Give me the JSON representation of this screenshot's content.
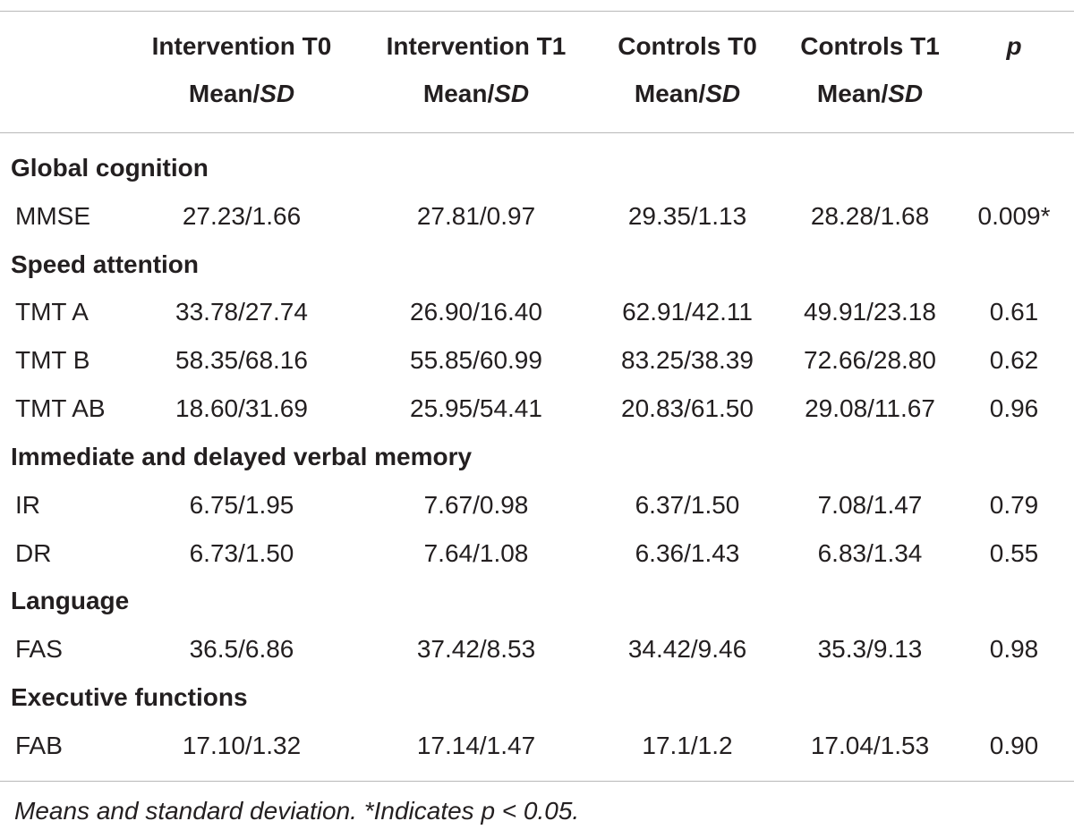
{
  "header": {
    "columns": [
      {
        "title": "Intervention T0",
        "sub": "Mean/",
        "sub_italic": "SD"
      },
      {
        "title": "Intervention T1",
        "sub": "Mean/",
        "sub_italic": "SD"
      },
      {
        "title": "Controls T0",
        "sub": "Mean/",
        "sub_italic": "SD"
      },
      {
        "title": "Controls T1",
        "sub": "Mean/",
        "sub_italic": "SD"
      },
      {
        "title": "p"
      }
    ]
  },
  "sections": [
    {
      "title": "Global cognition",
      "rows": [
        {
          "label": "MMSE",
          "cells": [
            "27.23/1.66",
            "27.81/0.97",
            "29.35/1.13",
            "28.28/1.68",
            "0.009*"
          ]
        }
      ]
    },
    {
      "title": "Speed attention",
      "rows": [
        {
          "label": "TMT A",
          "cells": [
            "33.78/27.74",
            "26.90/16.40",
            "62.91/42.11",
            "49.91/23.18",
            "0.61"
          ]
        },
        {
          "label": "TMT B",
          "cells": [
            "58.35/68.16",
            "55.85/60.99",
            "83.25/38.39",
            "72.66/28.80",
            "0.62"
          ]
        },
        {
          "label": "TMT AB",
          "cells": [
            "18.60/31.69",
            "25.95/54.41",
            "20.83/61.50",
            "29.08/11.67",
            "0.96"
          ]
        }
      ]
    },
    {
      "title": "Immediate and delayed verbal memory",
      "rows": [
        {
          "label": "IR",
          "cells": [
            "6.75/1.95",
            "7.67/0.98",
            "6.37/1.50",
            "7.08/1.47",
            "0.79"
          ]
        },
        {
          "label": "DR",
          "cells": [
            "6.73/1.50",
            "7.64/1.08",
            "6.36/1.43",
            "6.83/1.34",
            "0.55"
          ]
        }
      ]
    },
    {
      "title": "Language",
      "rows": [
        {
          "label": "FAS",
          "cells": [
            "36.5/6.86",
            "37.42/8.53",
            "34.42/9.46",
            "35.3/9.13",
            "0.98"
          ]
        }
      ]
    },
    {
      "title": "Executive functions",
      "rows": [
        {
          "label": "FAB",
          "cells": [
            "17.10/1.32",
            "17.14/1.47",
            "17.1/1.2",
            "17.04/1.53",
            "0.90"
          ]
        }
      ]
    }
  ],
  "footnote": "Means and standard deviation. *Indicates p < 0.05."
}
